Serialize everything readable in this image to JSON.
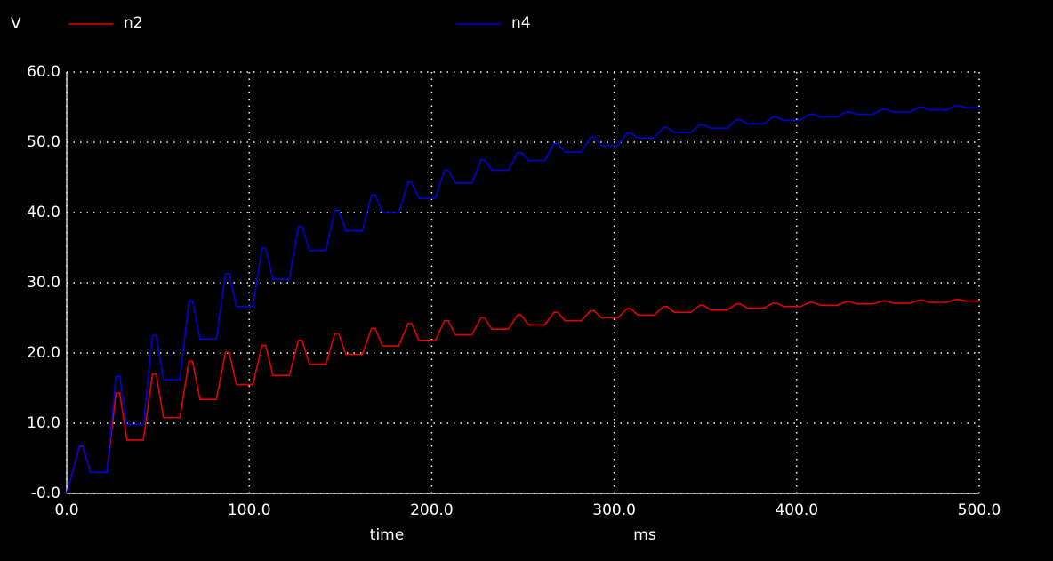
{
  "chart_data": {
    "type": "line",
    "y_label": "V",
    "x_label": "time",
    "x_unit": "ms",
    "x": [
      0,
      7,
      9,
      13,
      22,
      27,
      29,
      33,
      42,
      47,
      49,
      53,
      62,
      67,
      69,
      73,
      82,
      87,
      89,
      93,
      102,
      107,
      109,
      113,
      122,
      127,
      129,
      133,
      142,
      147,
      149,
      153,
      162,
      167,
      169,
      173,
      182,
      187,
      189,
      193,
      202,
      207,
      209,
      213,
      222,
      227,
      229,
      233,
      242,
      247,
      249,
      253,
      262,
      267,
      269,
      273,
      282,
      287,
      289,
      293,
      302,
      307,
      309,
      313,
      322,
      327,
      329,
      333,
      342,
      347,
      349,
      353,
      362,
      367,
      369,
      373,
      382,
      387,
      389,
      393,
      402,
      407,
      409,
      413,
      422,
      427,
      429,
      433,
      442,
      447,
      449,
      453,
      462,
      467,
      469,
      473,
      482,
      487,
      489,
      493,
      500
    ],
    "series": [
      {
        "name": "n2",
        "color": "#e00000",
        "values": [
          0,
          6.7,
          6.7,
          3.0,
          3.0,
          14.3,
          14.3,
          7.6,
          7.6,
          17.0,
          17.0,
          10.8,
          10.8,
          18.8,
          18.8,
          13.4,
          13.4,
          20.1,
          20.1,
          15.5,
          15.5,
          21.1,
          21.1,
          16.8,
          16.8,
          21.8,
          21.8,
          18.4,
          18.4,
          22.8,
          22.8,
          19.8,
          19.8,
          23.5,
          23.5,
          21.0,
          21.0,
          24.2,
          24.2,
          21.8,
          21.8,
          24.6,
          24.6,
          22.6,
          22.6,
          25.0,
          25.0,
          23.4,
          23.4,
          25.4,
          25.4,
          24.0,
          24.0,
          25.8,
          25.8,
          24.6,
          24.6,
          26.0,
          26.0,
          25.0,
          25.0,
          26.3,
          26.3,
          25.4,
          25.4,
          26.6,
          26.6,
          25.8,
          25.8,
          26.8,
          26.8,
          26.1,
          26.1,
          27.0,
          27.0,
          26.4,
          26.4,
          27.1,
          27.1,
          26.6,
          26.6,
          27.2,
          27.2,
          26.8,
          26.8,
          27.3,
          27.3,
          27.0,
          27.0,
          27.4,
          27.4,
          27.1,
          27.1,
          27.5,
          27.5,
          27.2,
          27.2,
          27.6,
          27.6,
          27.4,
          27.4
        ]
      },
      {
        "name": "n4",
        "color": "#0000d8",
        "values": [
          0,
          6.8,
          6.8,
          3.0,
          3.0,
          16.7,
          16.7,
          9.8,
          9.8,
          22.5,
          22.5,
          16.2,
          16.2,
          27.4,
          27.4,
          22.0,
          22.0,
          31.3,
          31.3,
          26.6,
          26.6,
          34.9,
          34.9,
          30.5,
          30.5,
          38.0,
          38.0,
          34.6,
          34.6,
          40.3,
          40.3,
          37.4,
          37.4,
          42.5,
          42.5,
          40.0,
          40.0,
          44.3,
          44.3,
          42.0,
          42.0,
          46.0,
          46.0,
          44.2,
          44.2,
          47.5,
          47.5,
          46.0,
          46.0,
          48.5,
          48.5,
          47.4,
          47.4,
          49.8,
          49.8,
          48.6,
          48.6,
          50.7,
          50.7,
          49.5,
          49.5,
          51.3,
          51.3,
          50.6,
          50.6,
          52.1,
          52.1,
          51.4,
          51.4,
          52.5,
          52.5,
          52.0,
          52.0,
          53.2,
          53.2,
          52.6,
          52.6,
          53.6,
          53.6,
          53.1,
          53.1,
          54.0,
          54.0,
          53.6,
          53.6,
          54.3,
          54.3,
          54.0,
          54.0,
          54.7,
          54.7,
          54.3,
          54.3,
          55.0,
          55.0,
          54.6,
          54.6,
          55.2,
          55.2,
          54.9,
          54.9
        ]
      }
    ],
    "xlim": [
      0,
      500
    ],
    "xticks": [
      {
        "value": 0,
        "label": "0.0"
      },
      {
        "value": 100,
        "label": "100.0"
      },
      {
        "value": 200,
        "label": "200.0"
      },
      {
        "value": 300,
        "label": "300.0"
      },
      {
        "value": 400,
        "label": "400.0"
      },
      {
        "value": 500,
        "label": "500.0"
      }
    ],
    "ylim": [
      0,
      60
    ],
    "yticks": [
      {
        "value": 0,
        "label": "-0.0"
      },
      {
        "value": 10,
        "label": "10.0"
      },
      {
        "value": 20,
        "label": "20.0"
      },
      {
        "value": 30,
        "label": "30.0"
      },
      {
        "value": 40,
        "label": "40.0"
      },
      {
        "value": 50,
        "label": "50.0"
      },
      {
        "value": 60,
        "label": "60.0"
      }
    ],
    "grid": true
  }
}
